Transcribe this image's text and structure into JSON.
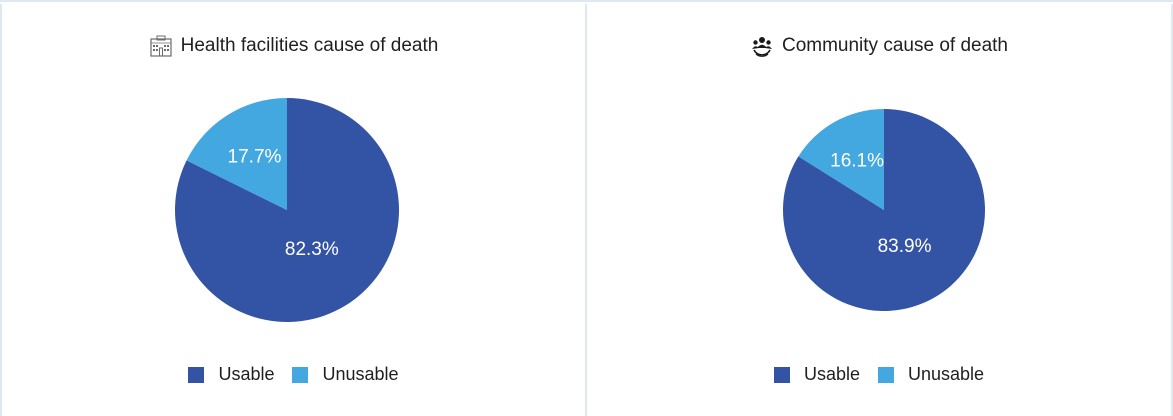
{
  "colors": {
    "usable": "#3353a4",
    "unusable": "#44a8e0",
    "border": "#dde8f3"
  },
  "panels": [
    {
      "title": "Health facilities cause of death",
      "icon": "hospital-building-icon"
    },
    {
      "title": "Community cause of death",
      "icon": "community-group-icon"
    }
  ],
  "legend": {
    "usable": "Usable",
    "unusable": "Unusable"
  },
  "chart_data": [
    {
      "type": "pie",
      "title": "Health facilities cause of death",
      "categories": [
        "Usable",
        "Unusable"
      ],
      "values": [
        82.3,
        17.7
      ],
      "labels": [
        "82.3%",
        "17.7%"
      ],
      "legend_position": "bottom"
    },
    {
      "type": "pie",
      "title": "Community cause of death",
      "categories": [
        "Usable",
        "Unusable"
      ],
      "values": [
        83.9,
        16.1
      ],
      "labels": [
        "83.9%",
        "16.1%"
      ],
      "legend_position": "bottom"
    }
  ]
}
